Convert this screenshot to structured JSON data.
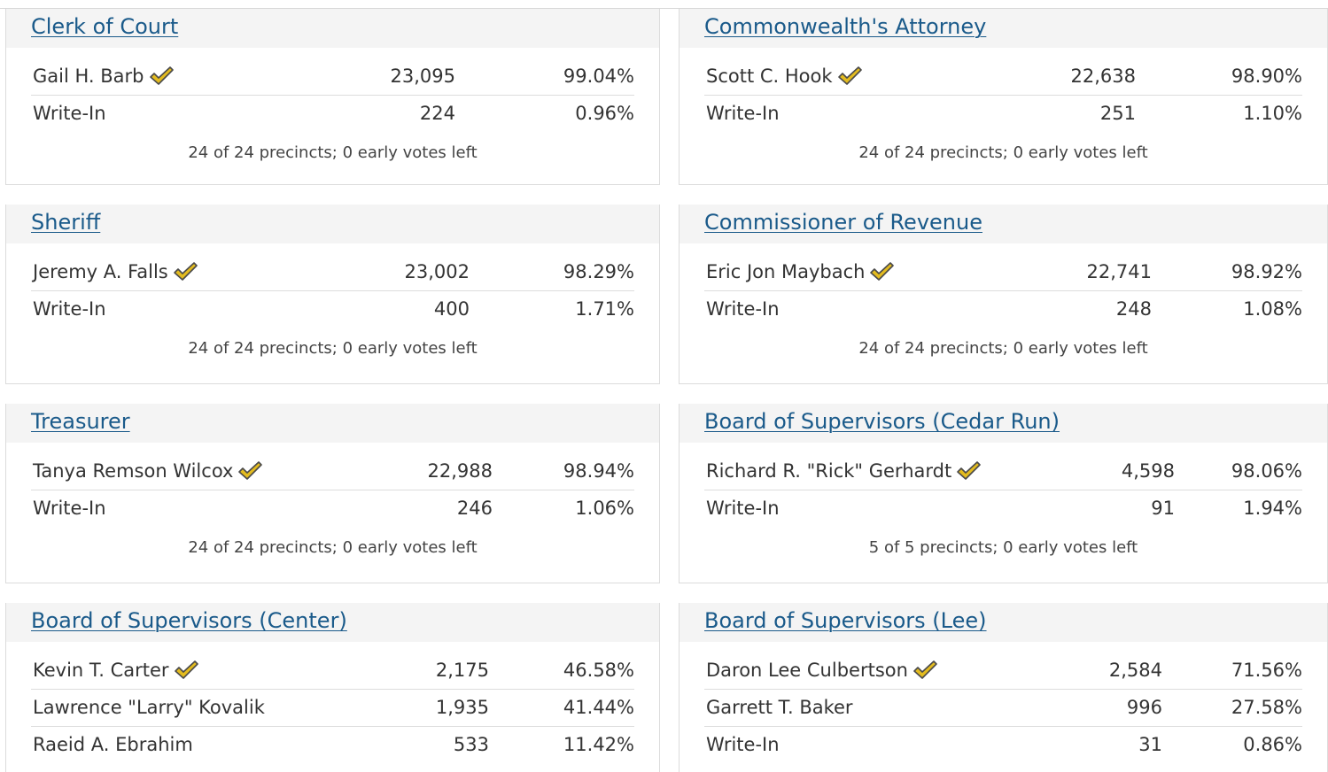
{
  "races": [
    {
      "title": "Clerk of Court",
      "candidates": [
        {
          "name": "Gail H. Barb",
          "votes": "23,095",
          "pct": "99.04%",
          "winner": true
        },
        {
          "name": "Write-In",
          "votes": "224",
          "pct": "0.96%",
          "winner": false
        }
      ],
      "footer": "24 of 24 precincts; 0 early votes left"
    },
    {
      "title": "Commonwealth's Attorney",
      "candidates": [
        {
          "name": "Scott C. Hook",
          "votes": "22,638",
          "pct": "98.90%",
          "winner": true
        },
        {
          "name": "Write-In",
          "votes": "251",
          "pct": "1.10%",
          "winner": false
        }
      ],
      "footer": "24 of 24 precincts; 0 early votes left"
    },
    {
      "title": "Sheriff",
      "candidates": [
        {
          "name": "Jeremy A. Falls",
          "votes": "23,002",
          "pct": "98.29%",
          "winner": true
        },
        {
          "name": "Write-In",
          "votes": "400",
          "pct": "1.71%",
          "winner": false
        }
      ],
      "footer": "24 of 24 precincts; 0 early votes left"
    },
    {
      "title": "Commissioner of Revenue",
      "candidates": [
        {
          "name": "Eric Jon Maybach",
          "votes": "22,741",
          "pct": "98.92%",
          "winner": true
        },
        {
          "name": "Write-In",
          "votes": "248",
          "pct": "1.08%",
          "winner": false
        }
      ],
      "footer": "24 of 24 precincts; 0 early votes left"
    },
    {
      "title": "Treasurer",
      "candidates": [
        {
          "name": "Tanya Remson Wilcox",
          "votes": "22,988",
          "pct": "98.94%",
          "winner": true
        },
        {
          "name": "Write-In",
          "votes": "246",
          "pct": "1.06%",
          "winner": false
        }
      ],
      "footer": "24 of 24 precincts; 0 early votes left"
    },
    {
      "title": "Board of Supervisors (Cedar Run)",
      "candidates": [
        {
          "name": "Richard R. \"Rick\" Gerhardt",
          "votes": "4,598",
          "pct": "98.06%",
          "winner": true
        },
        {
          "name": "Write-In",
          "votes": "91",
          "pct": "1.94%",
          "winner": false
        }
      ],
      "footer": "5 of 5 precincts; 0 early votes left"
    },
    {
      "title": "Board of Supervisors (Center)",
      "candidates": [
        {
          "name": "Kevin T. Carter",
          "votes": "2,175",
          "pct": "46.58%",
          "winner": true
        },
        {
          "name": "Lawrence \"Larry\" Kovalik",
          "votes": "1,935",
          "pct": "41.44%",
          "winner": false
        },
        {
          "name": "Raeid A. Ebrahim",
          "votes": "533",
          "pct": "11.42%",
          "winner": false
        }
      ],
      "footer": ""
    },
    {
      "title": "Board of Supervisors (Lee)",
      "candidates": [
        {
          "name": "Daron Lee Culbertson",
          "votes": "2,584",
          "pct": "71.56%",
          "winner": true
        },
        {
          "name": "Garrett T. Baker",
          "votes": "996",
          "pct": "27.58%",
          "winner": false
        },
        {
          "name": "Write-In",
          "votes": "31",
          "pct": "0.86%",
          "winner": false
        }
      ],
      "footer": ""
    }
  ],
  "colors": {
    "link": "#1a5a8a",
    "checkmark": "#e3bb1f",
    "checkmark_outline": "#4a4a4a"
  },
  "icons": {
    "winner": "checkmark-icon"
  }
}
